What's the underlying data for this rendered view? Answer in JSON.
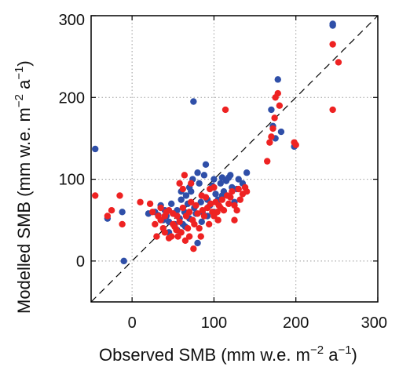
{
  "chart_data": {
    "type": "scatter",
    "title": "",
    "xlabel": "Observed SMB (mm w.e. m",
    "xlabel_unit_tail": "a",
    "ylabel": "Modelled SMB (mm w.e. m",
    "ylabel_unit_tail": "a",
    "exponent_m": "−2",
    "exponent_a": "−1",
    "xlim": [
      -50,
      300
    ],
    "ylim": [
      -50,
      300
    ],
    "xticks": [
      0,
      100,
      200,
      300
    ],
    "yticks": [
      0,
      100,
      200,
      300
    ],
    "xtick_labels": [
      "0",
      "100",
      "200",
      "300"
    ],
    "ytick_labels": [
      "0",
      "100",
      "200",
      "300"
    ],
    "grid": true,
    "grid_style": "dotted",
    "reference_line": "1:1 dashed",
    "legend": "none",
    "colors": {
      "blue": "#2f4fa8",
      "red": "#ee2222",
      "axis": "#000000",
      "grid": "#9a9a9a"
    },
    "series": [
      {
        "color": "#2f4fa8",
        "points": [
          [
            -45,
            137
          ],
          [
            -30,
            52
          ],
          [
            -12,
            60
          ],
          [
            -10,
            0
          ],
          [
            20,
            58
          ],
          [
            28,
            60
          ],
          [
            32,
            56
          ],
          [
            35,
            68
          ],
          [
            38,
            50
          ],
          [
            40,
            62
          ],
          [
            42,
            55
          ],
          [
            45,
            48
          ],
          [
            48,
            70
          ],
          [
            50,
            58
          ],
          [
            52,
            45
          ],
          [
            55,
            62
          ],
          [
            58,
            52
          ],
          [
            60,
            75
          ],
          [
            62,
            45
          ],
          [
            64,
            60
          ],
          [
            66,
            80
          ],
          [
            68,
            70
          ],
          [
            70,
            52
          ],
          [
            72,
            85
          ],
          [
            74,
            100
          ],
          [
            75,
            195
          ],
          [
            76,
            65
          ],
          [
            78,
            58
          ],
          [
            80,
            108
          ],
          [
            82,
            95
          ],
          [
            84,
            72
          ],
          [
            86,
            60
          ],
          [
            88,
            105
          ],
          [
            90,
            118
          ],
          [
            92,
            75
          ],
          [
            95,
            68
          ],
          [
            98,
            92
          ],
          [
            100,
            100
          ],
          [
            102,
            82
          ],
          [
            105,
            75
          ],
          [
            108,
            95
          ],
          [
            110,
            102
          ],
          [
            112,
            85
          ],
          [
            115,
            98
          ],
          [
            118,
            102
          ],
          [
            120,
            105
          ],
          [
            122,
            90
          ],
          [
            125,
            72
          ],
          [
            128,
            88
          ],
          [
            130,
            100
          ],
          [
            135,
            95
          ],
          [
            140,
            108
          ],
          [
            92,
            55
          ],
          [
            85,
            48
          ],
          [
            80,
            22
          ],
          [
            65,
            42
          ],
          [
            55,
            38
          ],
          [
            45,
            35
          ],
          [
            170,
            185
          ],
          [
            172,
            165
          ],
          [
            175,
            150
          ],
          [
            178,
            222
          ],
          [
            182,
            158
          ],
          [
            198,
            140
          ],
          [
            245,
            290
          ],
          [
            245,
            288
          ],
          [
            60,
            85
          ],
          [
            70,
            90
          ],
          [
            100,
            60
          ],
          [
            110,
            80
          ]
        ]
      },
      {
        "color": "#ee2222",
        "points": [
          [
            -45,
            80
          ],
          [
            -30,
            55
          ],
          [
            -25,
            62
          ],
          [
            -15,
            80
          ],
          [
            -12,
            45
          ],
          [
            10,
            72
          ],
          [
            22,
            70
          ],
          [
            25,
            60
          ],
          [
            28,
            45
          ],
          [
            30,
            30
          ],
          [
            32,
            55
          ],
          [
            35,
            50
          ],
          [
            38,
            40
          ],
          [
            40,
            35
          ],
          [
            42,
            60
          ],
          [
            45,
            28
          ],
          [
            48,
            30
          ],
          [
            50,
            45
          ],
          [
            52,
            42
          ],
          [
            54,
            38
          ],
          [
            55,
            55
          ],
          [
            56,
            30
          ],
          [
            58,
            48
          ],
          [
            60,
            35
          ],
          [
            62,
            65
          ],
          [
            64,
            105
          ],
          [
            66,
            55
          ],
          [
            68,
            40
          ],
          [
            70,
            60
          ],
          [
            72,
            72
          ],
          [
            74,
            50
          ],
          [
            76,
            45
          ],
          [
            78,
            68
          ],
          [
            80,
            58
          ],
          [
            82,
            40
          ],
          [
            84,
            30
          ],
          [
            86,
            62
          ],
          [
            88,
            55
          ],
          [
            90,
            78
          ],
          [
            92,
            65
          ],
          [
            94,
            45
          ],
          [
            96,
            70
          ],
          [
            98,
            60
          ],
          [
            100,
            55
          ],
          [
            102,
            72
          ],
          [
            104,
            60
          ],
          [
            106,
            68
          ],
          [
            108,
            65
          ],
          [
            110,
            75
          ],
          [
            112,
            62
          ],
          [
            114,
            185
          ],
          [
            116,
            80
          ],
          [
            118,
            70
          ],
          [
            120,
            78
          ],
          [
            122,
            85
          ],
          [
            125,
            68
          ],
          [
            128,
            62
          ],
          [
            130,
            88
          ],
          [
            132,
            75
          ],
          [
            135,
            82
          ],
          [
            138,
            90
          ],
          [
            140,
            85
          ],
          [
            75,
            15
          ],
          [
            70,
            30
          ],
          [
            65,
            25
          ],
          [
            50,
            58
          ],
          [
            45,
            62
          ],
          [
            58,
            95
          ],
          [
            62,
            88
          ],
          [
            72,
            95
          ],
          [
            165,
            122
          ],
          [
            168,
            145
          ],
          [
            170,
            152
          ],
          [
            172,
            162
          ],
          [
            174,
            175
          ],
          [
            175,
            200
          ],
          [
            178,
            205
          ],
          [
            180,
            190
          ],
          [
            198,
            145
          ],
          [
            200,
            142
          ],
          [
            245,
            185
          ],
          [
            245,
            265
          ],
          [
            252,
            243
          ],
          [
            40,
            55
          ],
          [
            35,
            65
          ],
          [
            100,
            90
          ],
          [
            105,
            50
          ],
          [
            125,
            50
          ],
          [
            95,
            88
          ],
          [
            85,
            80
          ]
        ]
      }
    ]
  }
}
